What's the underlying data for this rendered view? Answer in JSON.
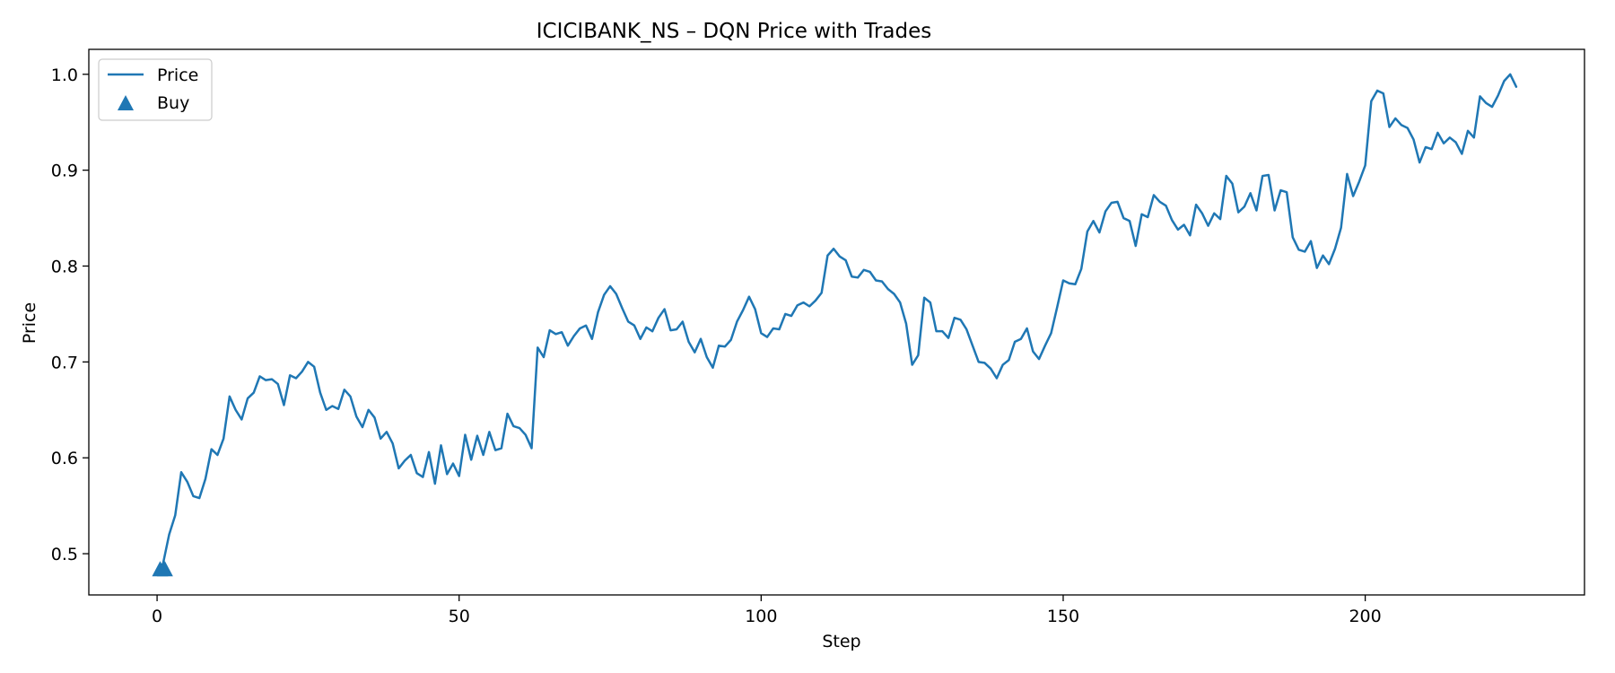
{
  "chart_data": {
    "type": "line",
    "title": "ICICIBANK_NS – DQN Price with Trades",
    "xlabel": "Step",
    "ylabel": "Price",
    "xlim": [
      -11.3,
      236.3
    ],
    "ylim": [
      0.457,
      1.026
    ],
    "xticks": [
      0,
      50,
      100,
      150,
      200
    ],
    "yticks": [
      0.5,
      0.6,
      0.7,
      0.8,
      0.9,
      1.0
    ],
    "xtick_labels": [
      "0",
      "50",
      "100",
      "150",
      "200"
    ],
    "ytick_labels": [
      "0.5",
      "0.6",
      "0.7",
      "0.8",
      "0.9",
      "1.0"
    ],
    "legend_position": "top-left",
    "grid": false,
    "colors": {
      "price": "#1f77b4",
      "buy": "#1f77b4"
    },
    "series": [
      {
        "name": "Price",
        "kind": "line",
        "y": [
          0.481,
          0.49,
          0.52,
          0.54,
          0.585,
          0.575,
          0.56,
          0.558,
          0.578,
          0.609,
          0.603,
          0.62,
          0.664,
          0.65,
          0.64,
          0.662,
          0.668,
          0.685,
          0.681,
          0.682,
          0.677,
          0.655,
          0.686,
          0.683,
          0.69,
          0.7,
          0.695,
          0.668,
          0.65,
          0.654,
          0.651,
          0.671,
          0.664,
          0.643,
          0.632,
          0.65,
          0.642,
          0.62,
          0.627,
          0.615,
          0.589,
          0.597,
          0.603,
          0.584,
          0.58,
          0.606,
          0.573,
          0.613,
          0.583,
          0.594,
          0.581,
          0.624,
          0.598,
          0.623,
          0.603,
          0.627,
          0.608,
          0.61,
          0.646,
          0.633,
          0.631,
          0.624,
          0.61,
          0.715,
          0.705,
          0.733,
          0.729,
          0.731,
          0.717,
          0.727,
          0.735,
          0.738,
          0.724,
          0.752,
          0.77,
          0.779,
          0.771,
          0.756,
          0.742,
          0.738,
          0.724,
          0.736,
          0.732,
          0.746,
          0.755,
          0.733,
          0.734,
          0.742,
          0.721,
          0.71,
          0.724,
          0.705,
          0.694,
          0.717,
          0.716,
          0.723,
          0.742,
          0.754,
          0.768,
          0.755,
          0.73,
          0.726,
          0.735,
          0.734,
          0.75,
          0.748,
          0.759,
          0.762,
          0.758,
          0.764,
          0.772,
          0.811,
          0.818,
          0.81,
          0.806,
          0.789,
          0.788,
          0.796,
          0.794,
          0.785,
          0.784,
          0.776,
          0.771,
          0.762,
          0.74,
          0.697,
          0.707,
          0.767,
          0.762,
          0.732,
          0.732,
          0.725,
          0.746,
          0.744,
          0.734,
          0.717,
          0.7,
          0.699,
          0.693,
          0.683,
          0.697,
          0.702,
          0.721,
          0.724,
          0.735,
          0.711,
          0.703,
          0.717,
          0.73,
          0.757,
          0.785,
          0.782,
          0.781,
          0.797,
          0.836,
          0.847,
          0.835,
          0.857,
          0.866,
          0.867,
          0.85,
          0.847,
          0.821,
          0.854,
          0.851,
          0.874,
          0.867,
          0.863,
          0.848,
          0.838,
          0.843,
          0.832,
          0.864,
          0.855,
          0.842,
          0.855,
          0.849,
          0.894,
          0.886,
          0.856,
          0.862,
          0.876,
          0.858,
          0.894,
          0.895,
          0.858,
          0.879,
          0.877,
          0.83,
          0.817,
          0.815,
          0.826,
          0.798,
          0.811,
          0.802,
          0.818,
          0.84,
          0.896,
          0.873,
          0.888,
          0.905,
          0.972,
          0.983,
          0.98,
          0.945,
          0.954,
          0.947,
          0.944,
          0.932,
          0.908,
          0.924,
          0.922,
          0.939,
          0.928,
          0.934,
          0.929,
          0.917,
          0.941,
          0.934,
          0.977,
          0.97,
          0.966,
          0.978,
          0.993,
          1.0,
          0.987
        ]
      },
      {
        "name": "Buy",
        "kind": "scatter",
        "marker": "triangle-up",
        "points": [
          [
            0.5,
            0.483
          ],
          [
            1.3,
            0.483
          ]
        ]
      }
    ]
  }
}
